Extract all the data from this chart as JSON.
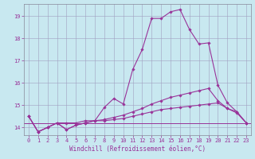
{
  "xlabel": "Windchill (Refroidissement éolien,°C)",
  "bg_color": "#c8e8f0",
  "line_color": "#993399",
  "grid_color": "#a0a0c0",
  "spine_color": "#888899",
  "xlim": [
    -0.5,
    23.5
  ],
  "ylim": [
    13.65,
    19.55
  ],
  "xticks": [
    0,
    1,
    2,
    3,
    4,
    5,
    6,
    7,
    8,
    9,
    10,
    11,
    12,
    13,
    14,
    15,
    16,
    17,
    18,
    19,
    20,
    21,
    22,
    23
  ],
  "yticks": [
    14,
    15,
    16,
    17,
    18,
    19
  ],
  "line1_x": [
    0,
    1,
    2,
    3,
    4,
    5,
    6,
    7,
    8,
    9,
    10,
    11,
    12,
    13,
    14,
    15,
    16,
    17,
    18,
    19,
    20,
    21,
    22,
    23
  ],
  "line1_y": [
    14.5,
    13.8,
    14.0,
    14.2,
    14.2,
    14.2,
    14.3,
    14.3,
    14.9,
    15.3,
    15.05,
    16.6,
    17.5,
    18.9,
    18.9,
    19.2,
    19.3,
    18.4,
    17.75,
    17.8,
    15.9,
    15.1,
    14.7,
    14.2
  ],
  "line2_x": [
    0,
    1,
    2,
    3,
    4,
    5,
    6,
    7,
    8,
    9,
    10,
    11,
    12,
    13,
    14,
    15,
    16,
    17,
    18,
    19,
    20,
    21,
    22,
    23
  ],
  "line2_y": [
    14.5,
    13.8,
    14.0,
    14.2,
    13.9,
    14.1,
    14.2,
    14.3,
    14.35,
    14.45,
    14.55,
    14.7,
    14.85,
    15.05,
    15.2,
    15.35,
    15.45,
    15.55,
    15.65,
    15.75,
    15.2,
    14.85,
    14.7,
    14.2
  ],
  "line3_x": [
    0,
    1,
    2,
    3,
    4,
    5,
    6,
    7,
    8,
    9,
    10,
    11,
    12,
    13,
    14,
    15,
    16,
    17,
    18,
    19,
    20,
    21,
    22,
    23
  ],
  "line3_y": [
    14.5,
    13.8,
    14.0,
    14.2,
    13.9,
    14.1,
    14.2,
    14.3,
    14.3,
    14.35,
    14.4,
    14.5,
    14.6,
    14.7,
    14.8,
    14.85,
    14.9,
    14.95,
    15.0,
    15.05,
    15.1,
    14.85,
    14.65,
    14.2
  ],
  "hline_y": 14.2,
  "marker": "D",
  "markersize": 1.8,
  "linewidth": 0.8,
  "tick_fontsize": 5.0,
  "xlabel_fontsize": 5.5
}
